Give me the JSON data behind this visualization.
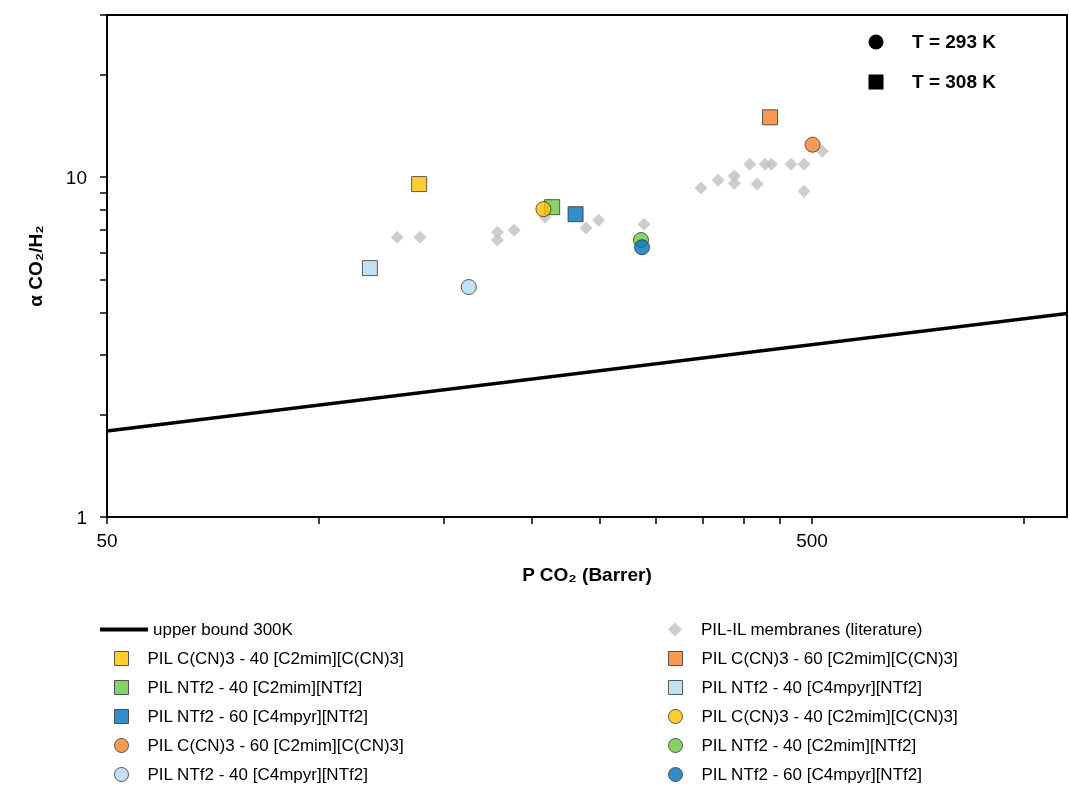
{
  "chart_data": {
    "type": "scatter",
    "xlabel": "P CO₂ (Barrer)",
    "ylabel": "α CO₂/H₂",
    "log": "xy",
    "grid": false,
    "legend": "bottom",
    "xlim": [
      50,
      1150
    ],
    "xticks": [
      50,
      {
        "value": 100,
        "label": null
      },
      {
        "value": 150,
        "label": null
      },
      {
        "value": 200,
        "label": null
      },
      {
        "value": 250,
        "label": null
      },
      {
        "value": 300,
        "label": null
      },
      {
        "value": 350,
        "label": null
      },
      {
        "value": 400,
        "label": null
      },
      {
        "value": 450,
        "label": null
      },
      500,
      {
        "value": 1000,
        "label": null
      }
    ],
    "ylim": [
      1,
      30
    ],
    "yticks": [
      1,
      {
        "value": 2,
        "label": null
      },
      {
        "value": 3,
        "label": null
      },
      {
        "value": 4,
        "label": null
      },
      {
        "value": 5,
        "label": null
      },
      {
        "value": 6,
        "label": null
      },
      {
        "value": 7,
        "label": null
      },
      {
        "value": 8,
        "label": null
      },
      {
        "value": 9,
        "label": null
      },
      10,
      {
        "value": 20,
        "label": null
      },
      {
        "value": 30,
        "label": null
      }
    ],
    "annotations": [
      "T = 293 K",
      "T = 308 K"
    ],
    "series": [
      {
        "name": "upper bound 300K",
        "type": "line",
        "marker": "none",
        "color": "#000000",
        "x": [
          50,
          1150
        ],
        "values": [
          1.79,
          3.97
        ]
      },
      {
        "name": "PIL-IL membranes (literature)",
        "marker": "diamond",
        "color": "#c0c0c0",
        "x": [
          129,
          139,
          179,
          179,
          189,
          209,
          239,
          249,
          289,
          348,
          368,
          388,
          388,
          408,
          418,
          429,
          438,
          467,
          487,
          487,
          517
        ],
        "values": [
          6.66,
          6.66,
          6.89,
          6.53,
          6.98,
          7.63,
          7.08,
          7.47,
          7.27,
          9.29,
          9.8,
          10.07,
          9.6,
          10.92,
          9.54,
          10.92,
          10.92,
          10.92,
          10.92,
          9.09,
          11.92
        ]
      },
      {
        "name": "PIL C(CN)3 - 40 [C2mim][C(CN)3]",
        "marker": "square",
        "color": "#ffc000",
        "x": [
          138.6
        ],
        "values": [
          9.54
        ]
      },
      {
        "name": "PIL C(CN)3 - 60 [C2mim][C(CN)3]",
        "marker": "square",
        "color": "#f9802b",
        "x": [
          436
        ],
        "values": [
          15.0
        ]
      },
      {
        "name": "PIL NTf2 - 40 [C2mim][NTf2]",
        "marker": "square",
        "color": "#6cc644",
        "x": [
          214
        ],
        "values": [
          8.16
        ]
      },
      {
        "name": "PIL NTf2 - 40 [C4mpyr][NTf2]",
        "marker": "square",
        "color": "#b5d8f0",
        "x": [
          118
        ],
        "values": [
          5.4
        ]
      },
      {
        "name": "PIL NTf2 - 60 [C4mpyr][NTf2]",
        "marker": "square",
        "color": "#0070c0",
        "x": [
          231
        ],
        "values": [
          7.78
        ]
      },
      {
        "name": "PIL C(CN)3 - 40 [C2mim][C(CN)3]",
        "marker": "circle",
        "color": "#ffc000",
        "x": [
          208
        ],
        "values": [
          8.05
        ]
      },
      {
        "name": "PIL C(CN)3 - 60 [C2mim][C(CN)3]",
        "marker": "circle",
        "color": "#f9802b",
        "x": [
          501
        ],
        "values": [
          12.46
        ]
      },
      {
        "name": "PIL NTf2 - 40 [C2mim][NTf2]",
        "marker": "circle",
        "color": "#6cc644",
        "x": [
          286
        ],
        "values": [
          6.53
        ]
      },
      {
        "name": "PIL NTf2 - 40 [C4mpyr][NTf2]",
        "marker": "circle",
        "color": "#b5d8f0",
        "x": [
          163
        ],
        "values": [
          4.75
        ]
      },
      {
        "name": "PIL NTf2 - 60 [C4mpyr][NTf2]",
        "marker": "circle",
        "color": "#0070c0",
        "x": [
          287
        ],
        "values": [
          6.22
        ]
      }
    ]
  }
}
